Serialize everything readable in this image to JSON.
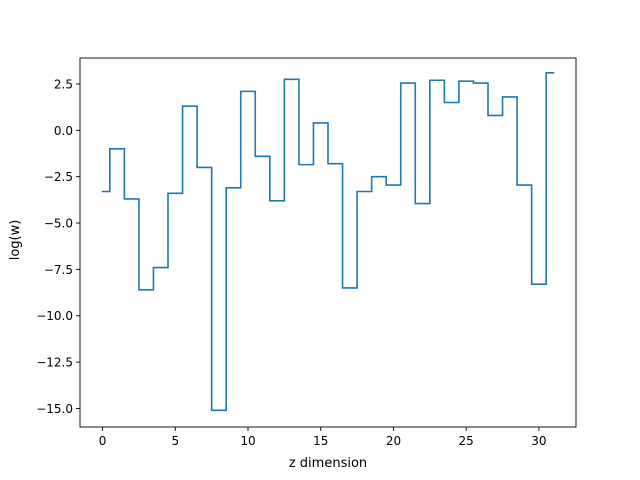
{
  "chart_data": {
    "type": "line",
    "drawstyle": "steps-mid",
    "title": "",
    "xlabel": "z dimension",
    "ylabel": "log(w)",
    "xlim": [
      -1.55,
      32.55
    ],
    "ylim": [
      -16.0,
      3.9
    ],
    "grid": false,
    "legend": "none",
    "line_color": "#1f77b4",
    "xticks": [
      0,
      5,
      10,
      15,
      20,
      25,
      30
    ],
    "xtick_labels": [
      "0",
      "5",
      "10",
      "15",
      "20",
      "25",
      "30"
    ],
    "yticks": [
      -15.0,
      -12.5,
      -10.0,
      -7.5,
      -5.0,
      -2.5,
      0.0,
      2.5
    ],
    "ytick_labels": [
      "−15.0",
      "−12.5",
      "−10.0",
      "−7.5",
      "−5.0",
      "−2.5",
      "0.0",
      "2.5"
    ],
    "series": [
      {
        "x": [
          0,
          1,
          2,
          3,
          4,
          5,
          6,
          7,
          8,
          9,
          10,
          11,
          12,
          13,
          14,
          15,
          16,
          17,
          18,
          19,
          20,
          21,
          22,
          23,
          24,
          25,
          26,
          27,
          28,
          29,
          30,
          31
        ],
        "values": [
          -3.3,
          -1.0,
          -3.7,
          -8.6,
          -7.4,
          -3.4,
          1.3,
          -2.0,
          -15.1,
          -3.1,
          2.1,
          -1.4,
          -3.8,
          2.75,
          -1.85,
          0.4,
          -1.8,
          -8.5,
          -3.3,
          -2.5,
          -2.95,
          2.55,
          -3.95,
          2.7,
          1.5,
          2.65,
          2.55,
          0.8,
          1.8,
          -2.95,
          -8.3,
          3.1
        ]
      }
    ]
  }
}
